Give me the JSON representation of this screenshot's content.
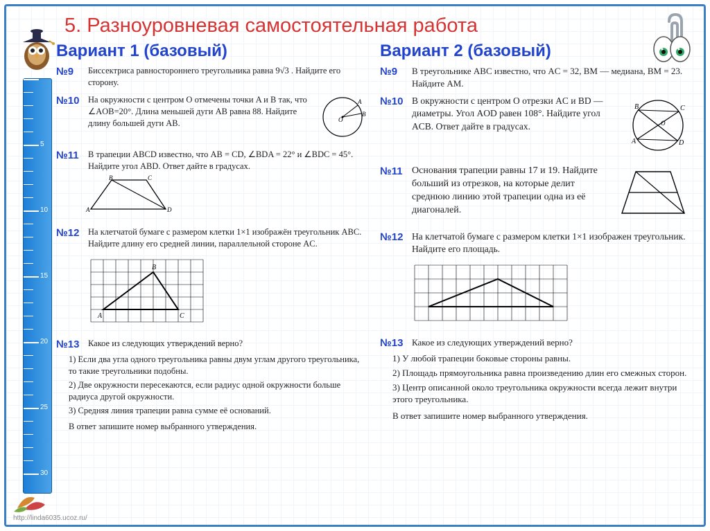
{
  "title": "5. Разноуровневая самостоятельная работа",
  "footer_url": "http://linda6035.ucoz.ru/",
  "v1": {
    "header": "Вариант 1 (базовый)",
    "t9": {
      "num": "№9",
      "text": "Биссектриса равностороннего треугольника равна 9√3 . Найдите его сторону."
    },
    "t10": {
      "num": "№10",
      "text": "На окружности с центром O отмечены точки A и B так, что ∠AOB=20°. Длина меньшей дуги AB равна 88. Найдите длину большей дуги AB."
    },
    "t11": {
      "num": "№11",
      "text": "В трапеции ABCD известно, что AB = CD, ∠BDA = 22° и ∠BDC = 45°. Найдите угол ABD. Ответ дайте в градусах."
    },
    "t12": {
      "num": "№12",
      "text": "На клетчатой бумаге с размером клетки 1×1 изображён треугольник ABC. Найдите длину его средней линии, параллельной стороне AC."
    },
    "t13": {
      "num": "№13",
      "q": "Какое из следующих утверждений верно?",
      "s1": "1)  Если два угла одного треугольника равны двум углам другого треугольника, то такие треугольники подобны.",
      "s2": "2)  Две окружности пересекаются, если радиус одной окружности больше радиуса другой окружности.",
      "s3": "3)  Средняя линия трапеции равна сумме её оснований.",
      "ans": "В ответ запишите номер выбранного утверждения."
    }
  },
  "v2": {
    "header": "Вариант 2 (базовый)",
    "t9": {
      "num": "№9",
      "text": "В треугольнике ABC известно, что AC = 32, BM — медиана, BM = 23. Найдите AM."
    },
    "t10": {
      "num": "№10",
      "text": "В окружности с центром O отрезки AC и BD — диаметры. Угол AOD равен 108°. Найдите угол ACB. Ответ дайте в градусах."
    },
    "t11": {
      "num": "№11",
      "text": "Основания трапеции равны 17 и 19. Найдите больший из отрезков, на которые делит среднюю линию этой трапеции одна из её диагоналей."
    },
    "t12": {
      "num": "№12",
      "text": "На клетчатой бумаге с размером клетки 1×1 изображен треугольник. Найдите его площадь."
    },
    "t13": {
      "num": "№13",
      "q": "Какое из следующих утверждений верно?",
      "s1": "1)  У любой трапеции боковые стороны равны.",
      "s2": "2)  Площадь прямоугольника равна произведению длин его смежных сторон.",
      "s3": "3)  Центр описанной около треугольника окружности всегда лежит внутри этого треугольника.",
      "ans": "В ответ запишите номер выбранного утверждения."
    }
  },
  "colors": {
    "title": "#d63333",
    "heading": "#2244cc",
    "ruler": "#1e7fd6",
    "frame": "#3b7fc4",
    "grid": "#e0ecf7"
  }
}
